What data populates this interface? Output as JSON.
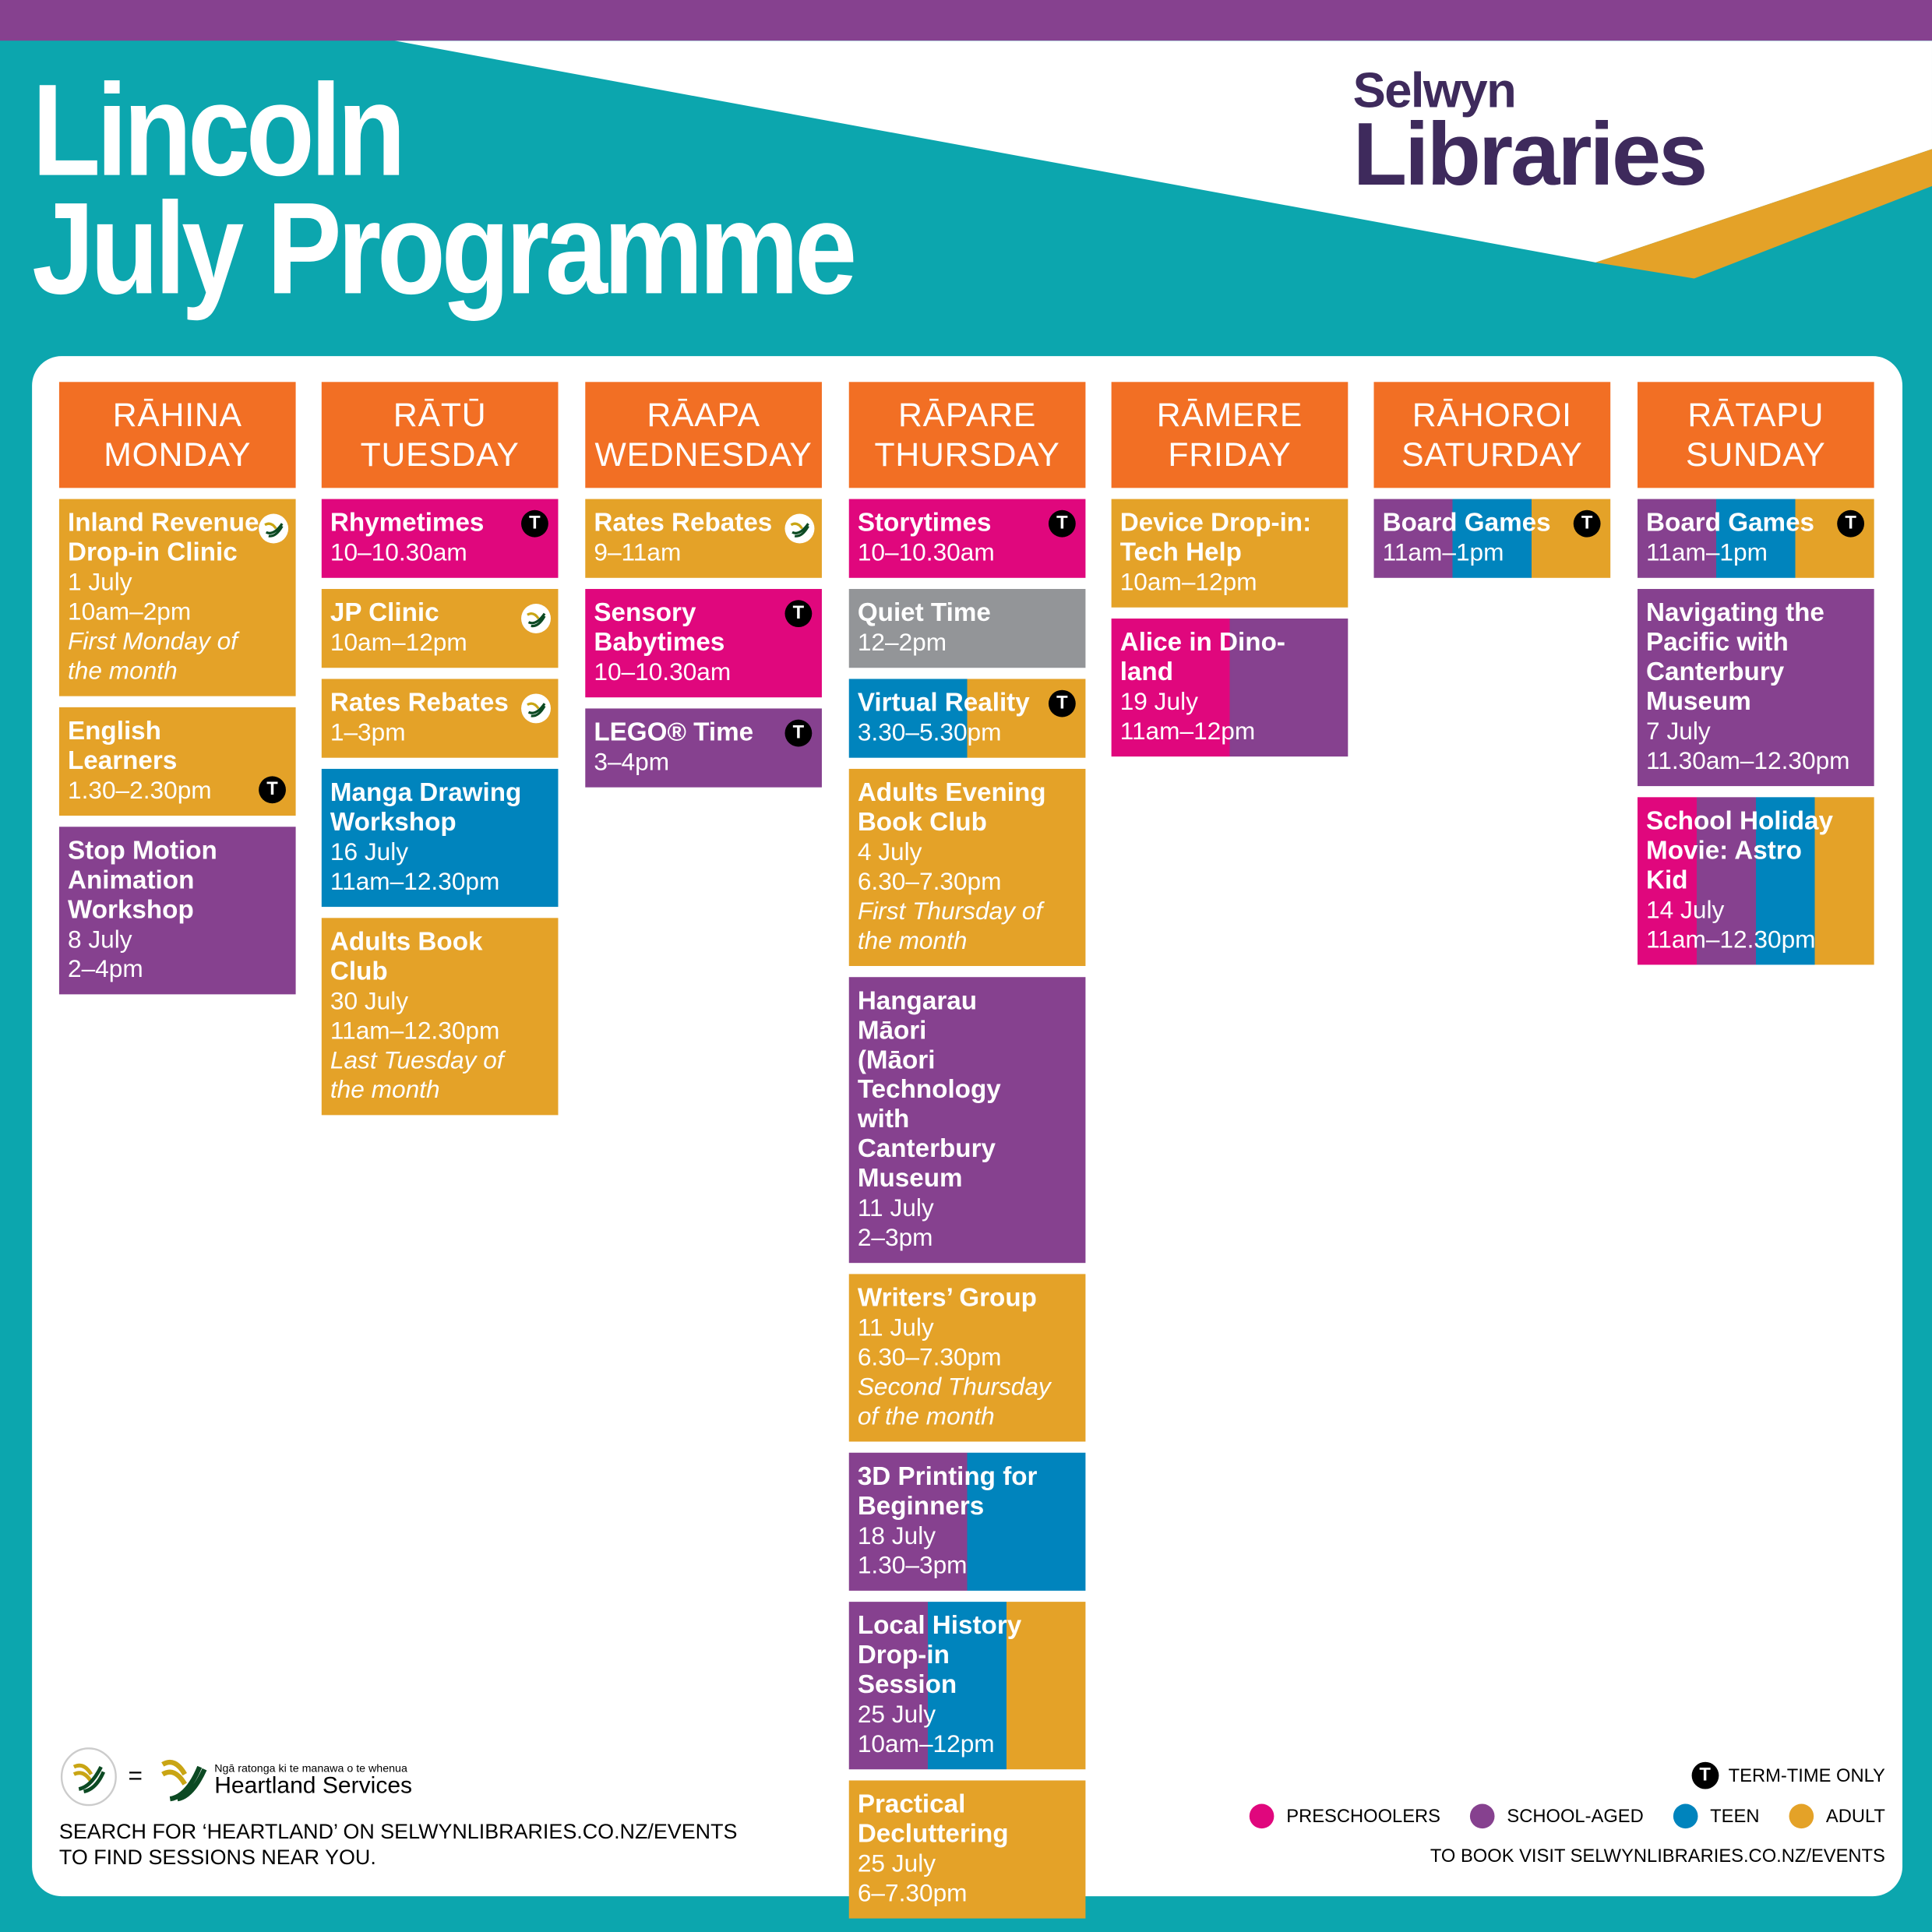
{
  "header": {
    "title": "Lincoln\nJuly Programme",
    "logo_line1": "Selwyn",
    "logo_line2": "Libraries"
  },
  "colors": {
    "preschoolers": "#e0077d",
    "school_aged": "#86418f",
    "teen": "#0084bd",
    "adult": "#e4a228",
    "general": "#939598",
    "day_header": "#f26f24",
    "background": "#0ca6ae"
  },
  "days": [
    {
      "maori": "RĀHINA",
      "english": "MONDAY",
      "events": [
        {
          "title": "Inland Revenue\nDrop-in Clinic",
          "date": "1 July",
          "time": "10am–2pm",
          "note": "First Monday of\nthe month",
          "audience": [
            "adult"
          ],
          "heartland": true
        },
        {
          "title": "English Learners",
          "time": "1.30–2.30pm",
          "audience": [
            "adult"
          ],
          "term": "bottom"
        },
        {
          "title": "Stop Motion\nAnimation\nWorkshop",
          "date": "8 July",
          "time": "2–4pm",
          "audience": [
            "school_aged"
          ]
        }
      ]
    },
    {
      "maori": "RĀTŪ",
      "english": "TUESDAY",
      "events": [
        {
          "title": "Rhymetimes",
          "time": "10–10.30am",
          "audience": [
            "preschoolers"
          ],
          "term": "top"
        },
        {
          "title": "JP Clinic",
          "time": "10am–12pm",
          "audience": [
            "adult"
          ],
          "heartland": true
        },
        {
          "title": "Rates Rebates",
          "time": "1–3pm",
          "audience": [
            "adult"
          ],
          "heartland": true
        },
        {
          "title": "Manga Drawing\nWorkshop",
          "date": "16 July",
          "time": "11am–12.30pm",
          "audience": [
            "teen"
          ]
        },
        {
          "title": "Adults Book Club",
          "date": "30 July",
          "time": "11am–12.30pm",
          "note": "Last Tuesday of\nthe month",
          "audience": [
            "adult"
          ]
        }
      ]
    },
    {
      "maori": "RĀAPA",
      "english": "WEDNESDAY",
      "events": [
        {
          "title": "Rates Rebates",
          "time": "9–11am",
          "audience": [
            "adult"
          ],
          "heartland": true
        },
        {
          "title": "Sensory\nBabytimes",
          "time": "10–10.30am",
          "audience": [
            "preschoolers"
          ],
          "term": "top"
        },
        {
          "title": "LEGO® Time",
          "time": "3–4pm",
          "audience": [
            "school_aged"
          ],
          "term": "top"
        }
      ]
    },
    {
      "maori": "RĀPARE",
      "english": "THURSDAY",
      "events": [
        {
          "title": "Storytimes",
          "time": "10–10.30am",
          "audience": [
            "preschoolers"
          ],
          "term": "top"
        },
        {
          "title": "Quiet Time",
          "time": "12–2pm",
          "audience": [
            "general"
          ]
        },
        {
          "title": "Virtual Reality",
          "time": "3.30–5.30pm",
          "audience": [
            "teen",
            "adult"
          ],
          "term": "top"
        },
        {
          "title": "Adults Evening\nBook Club",
          "date": "4 July",
          "time": "6.30–7.30pm",
          "note": "First Thursday of\nthe month",
          "audience": [
            "adult"
          ]
        },
        {
          "title": "Hangarau Māori\n(Māori Technology\nwith Canterbury\nMuseum",
          "date": "11 July",
          "time": "2–3pm",
          "audience": [
            "school_aged"
          ]
        },
        {
          "title": "Writers’ Group",
          "date": "11 July",
          "time": "6.30–7.30pm",
          "note": "Second Thursday\nof the month",
          "audience": [
            "adult"
          ]
        },
        {
          "title": "3D Printing for\nBeginners",
          "date": "18 July",
          "time": "1.30–3pm",
          "audience": [
            "school_aged",
            "teen"
          ]
        },
        {
          "title": "Local History\nDrop-in Session",
          "date": "25 July",
          "time": "10am–12pm",
          "audience": [
            "school_aged",
            "teen",
            "adult"
          ]
        },
        {
          "title": "Practical\nDecluttering",
          "date": "25 July",
          "time": "6–7.30pm",
          "audience": [
            "adult"
          ]
        }
      ]
    },
    {
      "maori": "RĀMERE",
      "english": "FRIDAY",
      "events": [
        {
          "title": "Device Drop-in:\nTech Help",
          "time": "10am–12pm",
          "audience": [
            "adult"
          ]
        },
        {
          "title": "Alice in Dino-land",
          "date": "19 July",
          "time": "11am–12pm",
          "audience": [
            "preschoolers",
            "school_aged"
          ]
        }
      ]
    },
    {
      "maori": "RĀHOROI",
      "english": "SATURDAY",
      "events": [
        {
          "title": "Board Games",
          "time": "11am–1pm",
          "audience": [
            "school_aged",
            "teen",
            "adult"
          ],
          "term": "top"
        }
      ]
    },
    {
      "maori": "RĀTAPU",
      "english": "SUNDAY",
      "events": [
        {
          "title": "Board Games",
          "time": "11am–1pm",
          "audience": [
            "school_aged",
            "teen",
            "adult"
          ],
          "term": "top"
        },
        {
          "title": "Navigating the\nPacific with\nCanterbury\nMuseum",
          "date": "7 July",
          "time": "11.30am–12.30pm",
          "audience": [
            "school_aged"
          ]
        },
        {
          "title": "School Holiday\nMovie: Astro Kid",
          "date": "14 July",
          "time": "11am–12.30pm",
          "audience": [
            "preschoolers",
            "school_aged",
            "teen",
            "adult"
          ]
        }
      ]
    }
  ],
  "footer": {
    "heartland_equals": "=",
    "heartland_tagline": "Ngā ratonga ki te manawa o te whenua",
    "heartland_name": "Heartland Services",
    "search_text": "SEARCH FOR ‘HEARTLAND’ ON SELWYNLIBRARIES.CO.NZ/EVENTS\nTO FIND SESSIONS NEAR YOU.",
    "term_badge": "T",
    "term_label": "TERM-TIME ONLY",
    "legend": [
      {
        "key": "preschoolers",
        "label": "PRESCHOOLERS"
      },
      {
        "key": "school_aged",
        "label": "SCHOOL-AGED"
      },
      {
        "key": "teen",
        "label": "TEEN"
      },
      {
        "key": "adult",
        "label": "ADULT"
      }
    ],
    "booking_text": "TO BOOK VISIT SELWYNLIBRARIES.CO.NZ/EVENTS"
  }
}
